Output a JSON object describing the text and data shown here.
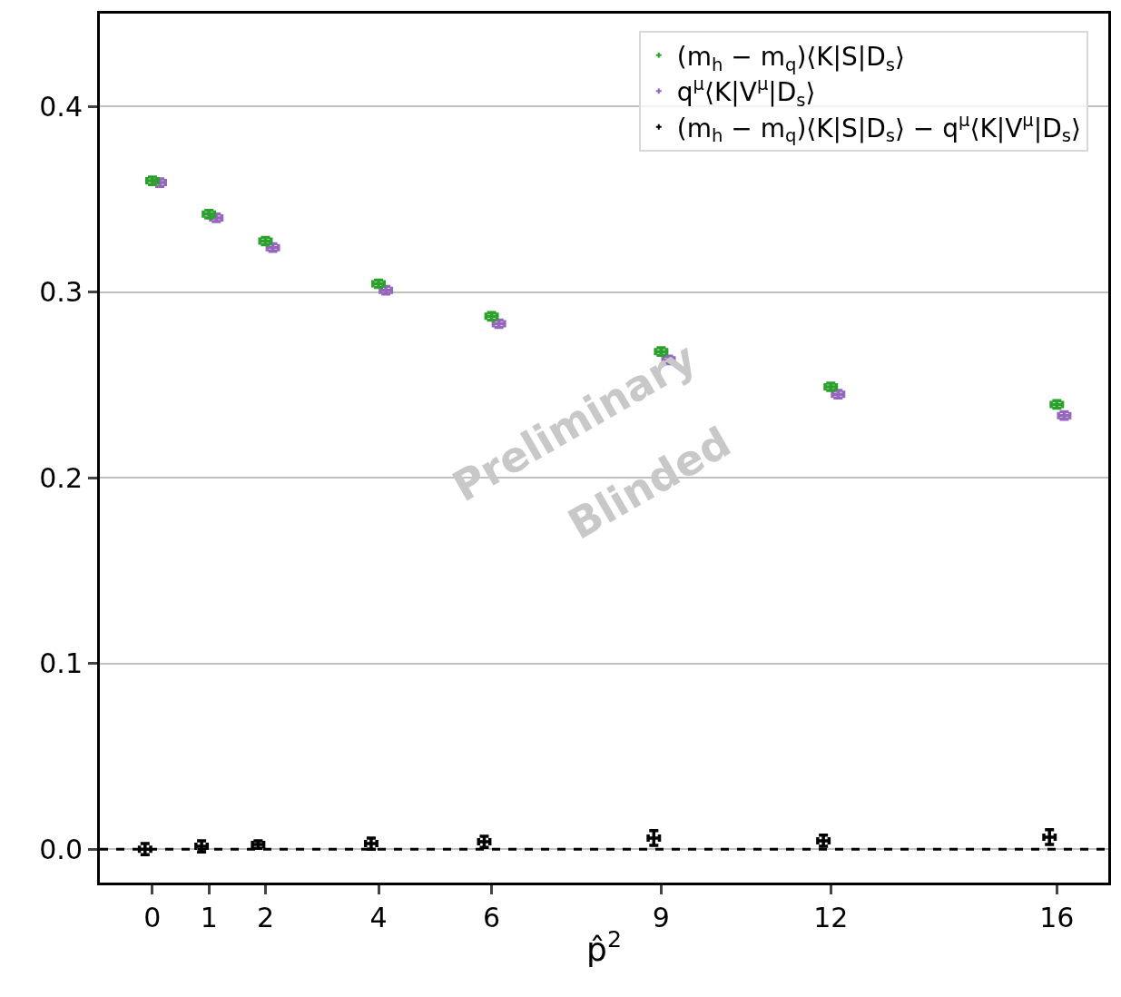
{
  "chart_data": {
    "type": "scatter",
    "xlabel": "p̂$^{2}$",
    "xlim": [
      -0.93,
      16.91
    ],
    "xticks": [
      0,
      1,
      2,
      4,
      6,
      9,
      12,
      16
    ],
    "ylim": [
      -0.018,
      0.45
    ],
    "yticks": [
      {
        "value": 0,
        "label": "0.0"
      },
      0.1,
      0.2,
      0.3,
      0.4
    ],
    "grid": "y",
    "legend": "top right",
    "marker": "cross",
    "series": [
      {
        "name": "(m$_{h}$ − m$_{q}$)⟨K|S|D$_{s}$⟩",
        "color": "#2ca02c",
        "x": [
          0,
          1,
          2,
          4,
          6,
          9,
          12,
          16
        ],
        "values": [
          0.36,
          0.342,
          0.3275,
          0.3045,
          0.287,
          0.268,
          0.249,
          0.2395
        ],
        "errors": [
          0.002,
          0.002,
          0.002,
          0.002,
          0.002,
          0.002,
          0.002,
          0.002
        ],
        "xerrors": [
          0.1,
          0.1,
          0.1,
          0.1,
          0.1,
          0.1,
          0.1,
          0.1
        ]
      },
      {
        "name": "q$^{μ}$⟨K|V$^{μ}$|D$_{s}$⟩",
        "color": "#9467bd",
        "x": [
          0.13,
          1.13,
          2.13,
          4.13,
          6.13,
          9.13,
          12.13,
          16.13
        ],
        "values": [
          0.359,
          0.34,
          0.324,
          0.301,
          0.283,
          0.2635,
          0.245,
          0.2335
        ],
        "errors": [
          0.002,
          0.002,
          0.002,
          0.002,
          0.002,
          0.002,
          0.002,
          0.002
        ],
        "xerrors": [
          0.1,
          0.1,
          0.1,
          0.1,
          0.1,
          0.1,
          0.1,
          0.1
        ]
      },
      {
        "name": "(m$_{h}$ − m$_{q}$)⟨K|S|D$_{s}$⟩ − q$^{μ}$⟨K|V$^{μ}$|D$_{s}$⟩",
        "color": "#000000",
        "x": [
          -0.13,
          0.87,
          1.87,
          3.87,
          5.87,
          8.87,
          11.87,
          15.87
        ],
        "values": [
          0.0,
          0.0015,
          0.0025,
          0.003,
          0.004,
          0.006,
          0.0045,
          0.0065
        ],
        "errors": [
          0.003,
          0.003,
          0.002,
          0.003,
          0.003,
          0.004,
          0.003,
          0.004
        ],
        "xerrors": [
          0.1,
          0.1,
          0.1,
          0.1,
          0.1,
          0.1,
          0.1,
          0.1
        ]
      }
    ],
    "ref_lines": [
      {
        "axis": "y",
        "value": 0,
        "color": "#000000",
        "line_style": "dashed"
      }
    ],
    "annotations": [
      "Preliminary",
      "Blinded"
    ]
  }
}
